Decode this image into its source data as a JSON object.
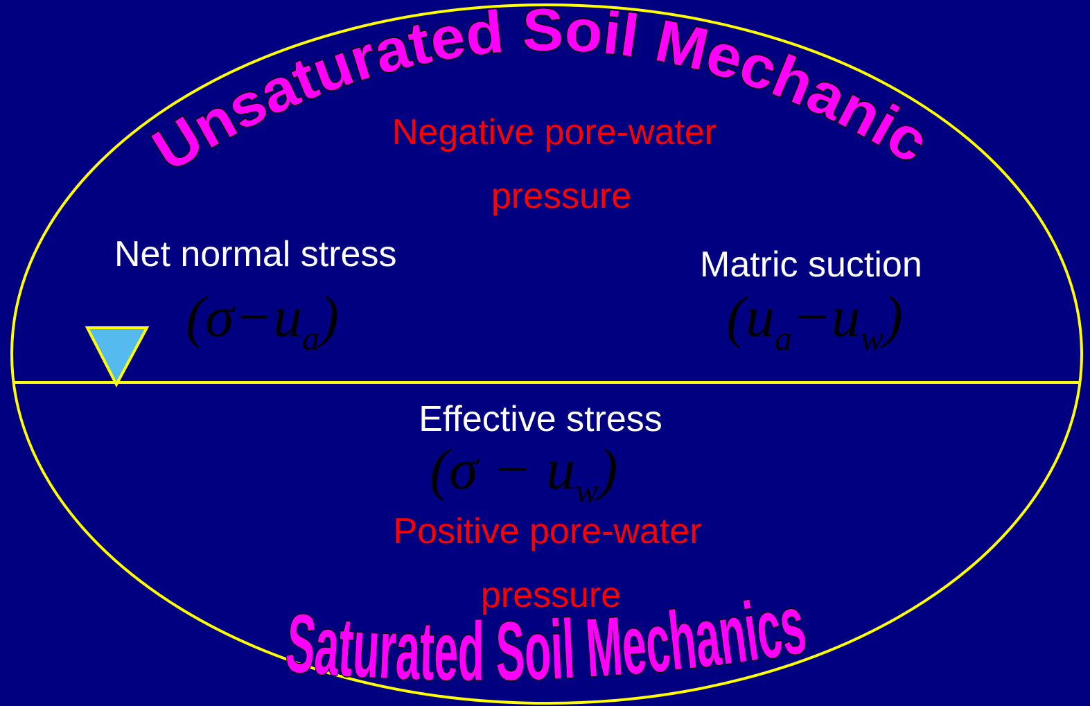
{
  "title_top": "Unsaturated Soil Mechanics",
  "title_bottom": "Saturated Soil Mechanics",
  "upper": {
    "label": [
      "Negative pore-water",
      "pressure"
    ]
  },
  "net_normal": {
    "label": "Net normal stress",
    "formula": [
      {
        "text": "(σ−u"
      },
      {
        "sub": "a"
      },
      {
        "text": ")"
      }
    ]
  },
  "matric": {
    "label": "Matric suction",
    "formula": [
      {
        "text": "(u"
      },
      {
        "sub": "a"
      },
      {
        "text": "−u"
      },
      {
        "sub": "w"
      },
      {
        "text": ")"
      }
    ]
  },
  "effective": {
    "label": "Effective stress",
    "formula": [
      {
        "text": "(σ − u"
      },
      {
        "sub": "w"
      },
      {
        "text": ")"
      }
    ]
  },
  "lower": {
    "label": [
      "Positive pore-water",
      "pressure"
    ]
  }
}
